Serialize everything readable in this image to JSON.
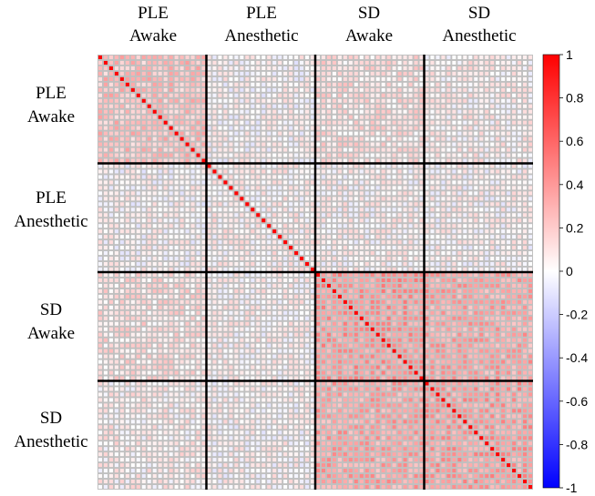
{
  "chart_data": {
    "type": "heatmap",
    "title": "",
    "groups": [
      {
        "line1": "PLE",
        "line2": "Awake"
      },
      {
        "line1": "PLE",
        "line2": "Anesthetic"
      },
      {
        "line1": "SD",
        "line2": "Awake"
      },
      {
        "line1": "SD",
        "line2": "Anesthetic"
      }
    ],
    "cells_per_group": 20,
    "diagonal_value": 1,
    "block_mean_correlation": [
      [
        0.25,
        0.02,
        0.12,
        0.06
      ],
      [
        0.02,
        0.05,
        0.04,
        0.03
      ],
      [
        0.12,
        0.04,
        0.4,
        0.35
      ],
      [
        0.06,
        0.03,
        0.35,
        0.38
      ]
    ],
    "colorbar": {
      "min": -1,
      "max": 1,
      "ticks": [
        1,
        0.8,
        0.6,
        0.4,
        0.2,
        0,
        -0.2,
        -0.4,
        -0.6,
        -0.8,
        -1
      ],
      "tick_labels": [
        "1",
        "0.8",
        "0.6",
        "0.4",
        "0.2",
        "0",
        "-0.2",
        "-0.4",
        "-0.6",
        "-0.8",
        "-1"
      ],
      "colors": {
        "low": "#0000ff",
        "mid": "#ffffff",
        "high": "#ff0000"
      }
    },
    "cell_border_color": "#c0c0c0",
    "block_line_color": "#000000",
    "legend_position": "right"
  }
}
